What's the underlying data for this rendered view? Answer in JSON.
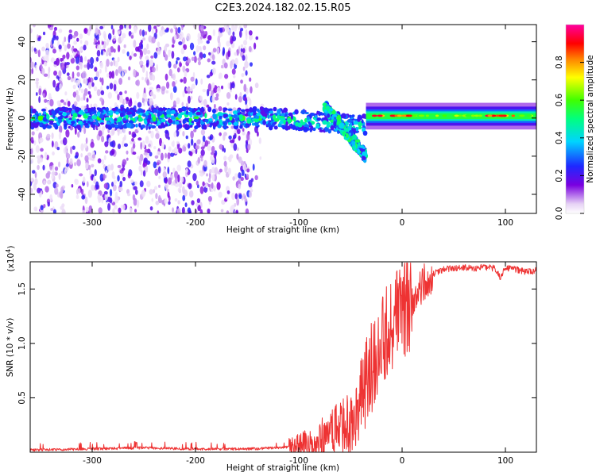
{
  "title": "C2E3.2024.182.02.15.R05",
  "chart_data": [
    {
      "type": "heatmap",
      "name": "spectrogram",
      "xlabel": "Height of straight line (km)",
      "ylabel": "Frequency (Hz)",
      "xlim": [
        -360,
        130
      ],
      "ylim": [
        -50,
        49
      ],
      "xticks": [
        -300,
        -200,
        -100,
        0,
        100
      ],
      "xtick_labels": [
        "-300",
        "-200",
        "-100",
        "0",
        "100"
      ],
      "yticks": [
        -40,
        -20,
        0,
        20,
        40
      ],
      "ytick_labels": [
        "-40",
        "-20",
        "0",
        "20",
        "40"
      ],
      "colorbar": {
        "label": "Normalized spectral amplitude",
        "range": [
          0,
          1
        ],
        "ticks": [
          0,
          0.2,
          0.4,
          0.6,
          0.8
        ],
        "tick_labels": [
          "0.0",
          "0.2",
          "0.4",
          "0.6",
          "0.8"
        ]
      },
      "features": [
        {
          "desc": "scattered noise",
          "x_range": [
            -360,
            -140
          ],
          "y_range": [
            -50,
            49
          ],
          "amplitude": 0.15
        },
        {
          "desc": "main signal band",
          "x_range": [
            -360,
            130
          ],
          "center_hz": 0,
          "amplitude": 0.45
        },
        {
          "desc": "descending branch",
          "x_range": [
            -100,
            -35
          ],
          "from_hz": 0,
          "to_hz": -22,
          "amplitude": 0.35
        },
        {
          "desc": "stable strong band",
          "x_range": [
            -35,
            130
          ],
          "center_hz": 1,
          "amplitude": 0.6
        }
      ]
    },
    {
      "type": "line",
      "name": "snr",
      "xlabel": "Height of straight line (km)",
      "ylabel": "SNR (10 * v/v)",
      "scale_label": "(x10",
      "scale_exp": "4",
      "scale_close": ")",
      "xlim": [
        -360,
        130
      ],
      "ylim": [
        0,
        1.75
      ],
      "xticks": [
        -300,
        -200,
        -100,
        0,
        100
      ],
      "xtick_labels": [
        "-300",
        "-200",
        "-100",
        "0",
        "100"
      ],
      "yticks": [
        0.5,
        1.0,
        1.5
      ],
      "ytick_labels": [
        "0.5",
        "1.0",
        "1.5"
      ],
      "series": [
        {
          "name": "SNR",
          "color": "#ee3333",
          "x": [
            -360,
            -300,
            -250,
            -200,
            -150,
            -120,
            -100,
            -80,
            -70,
            -60,
            -50,
            -45,
            -40,
            -35,
            -30,
            -25,
            -20,
            -15,
            -10,
            -5,
            0,
            5,
            10,
            15,
            20,
            25,
            30,
            40,
            50,
            60,
            70,
            80,
            90,
            95,
            100,
            110,
            120,
            130
          ],
          "values": [
            0.02,
            0.03,
            0.04,
            0.03,
            0.03,
            0.04,
            0.06,
            0.12,
            0.17,
            0.22,
            0.28,
            0.33,
            0.45,
            0.6,
            0.75,
            0.9,
            1.05,
            1.15,
            1.2,
            1.25,
            1.3,
            1.35,
            1.4,
            1.48,
            1.55,
            1.6,
            1.64,
            1.68,
            1.69,
            1.7,
            1.69,
            1.7,
            1.69,
            1.6,
            1.69,
            1.68,
            1.66,
            1.67
          ]
        }
      ]
    }
  ]
}
